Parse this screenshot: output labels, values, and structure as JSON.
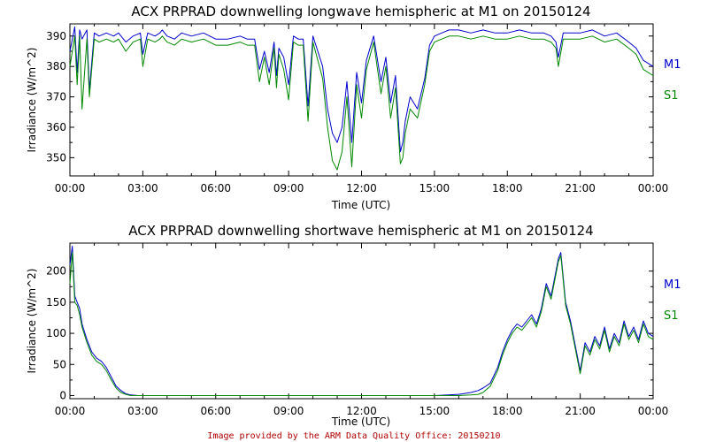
{
  "footer": "Image provided by the ARM Data Quality Office: 20150210",
  "colors": {
    "m1": "#0000cc",
    "s1": "#008800",
    "footer": "#b00000"
  },
  "chart_data": [
    {
      "type": "line",
      "title": "ACX PRPRAD downwelling longwave hemispheric at M1 on 20150124",
      "xlabel": "Time (UTC)",
      "ylabel": "Irradiance (W/m^2)",
      "xlim": [
        0,
        24
      ],
      "ylim": [
        344,
        394
      ],
      "yticks": [
        350,
        360,
        370,
        380,
        390
      ],
      "xticks": [
        0,
        3,
        6,
        9,
        12,
        15,
        18,
        21,
        24
      ],
      "xtick_labels": [
        "00:00",
        "03:00",
        "06:00",
        "09:00",
        "12:00",
        "15:00",
        "18:00",
        "21:00",
        "00:00"
      ],
      "legend": [
        "M1",
        "S1"
      ],
      "legend_position": "right",
      "series": [
        {
          "name": "M1",
          "x": [
            0,
            0.2,
            0.3,
            0.4,
            0.5,
            0.7,
            0.8,
            1.0,
            1.2,
            1.5,
            1.8,
            2.0,
            2.3,
            2.6,
            2.9,
            3.0,
            3.2,
            3.5,
            3.7,
            3.8,
            4.0,
            4.3,
            4.6,
            5.0,
            5.5,
            6.0,
            6.5,
            7.0,
            7.3,
            7.6,
            7.8,
            8.0,
            8.2,
            8.4,
            8.5,
            8.6,
            8.8,
            9.0,
            9.2,
            9.4,
            9.6,
            9.8,
            10.0,
            10.2,
            10.4,
            10.6,
            10.8,
            11.0,
            11.2,
            11.4,
            11.6,
            11.8,
            12.0,
            12.2,
            12.5,
            12.8,
            13.0,
            13.2,
            13.4,
            13.6,
            13.7,
            13.8,
            14.0,
            14.3,
            14.6,
            14.8,
            15.0,
            15.3,
            15.6,
            16.0,
            16.5,
            17.0,
            17.5,
            18.0,
            18.5,
            19.0,
            19.5,
            19.8,
            20.0,
            20.1,
            20.3,
            20.6,
            21.0,
            21.5,
            22.0,
            22.5,
            23.0,
            23.3,
            23.6,
            24.0
          ],
          "values": [
            385,
            393,
            378,
            392,
            389,
            392,
            372,
            391,
            390,
            391,
            390,
            391,
            388,
            390,
            391,
            384,
            391,
            390,
            391,
            392,
            390,
            389,
            391,
            390,
            391,
            389,
            389,
            390,
            389,
            389,
            379,
            385,
            378,
            388,
            377,
            386,
            383,
            374,
            390,
            389,
            389,
            367,
            390,
            385,
            380,
            366,
            358,
            355,
            360,
            375,
            355,
            378,
            368,
            382,
            390,
            375,
            383,
            368,
            377,
            352,
            355,
            362,
            370,
            366,
            376,
            387,
            390,
            391,
            392,
            392,
            391,
            392,
            391,
            391,
            392,
            391,
            391,
            390,
            388,
            383,
            391,
            391,
            391,
            392,
            390,
            391,
            388,
            386,
            382,
            380
          ]
        },
        {
          "name": "S1",
          "x": [
            0,
            0.2,
            0.3,
            0.4,
            0.5,
            0.7,
            0.8,
            1.0,
            1.2,
            1.5,
            1.8,
            2.0,
            2.3,
            2.6,
            2.9,
            3.0,
            3.2,
            3.5,
            3.7,
            3.8,
            4.0,
            4.3,
            4.6,
            5.0,
            5.5,
            6.0,
            6.5,
            7.0,
            7.3,
            7.6,
            7.8,
            8.0,
            8.2,
            8.4,
            8.5,
            8.6,
            8.8,
            9.0,
            9.2,
            9.4,
            9.6,
            9.8,
            10.0,
            10.2,
            10.4,
            10.6,
            10.8,
            11.0,
            11.2,
            11.4,
            11.6,
            11.8,
            12.0,
            12.2,
            12.5,
            12.8,
            13.0,
            13.2,
            13.4,
            13.6,
            13.7,
            13.8,
            14.0,
            14.3,
            14.6,
            14.8,
            15.0,
            15.3,
            15.6,
            16.0,
            16.5,
            17.0,
            17.5,
            18.0,
            18.5,
            19.0,
            19.5,
            19.8,
            20.0,
            20.1,
            20.3,
            20.6,
            21.0,
            21.5,
            22.0,
            22.5,
            23.0,
            23.3,
            23.6,
            24.0
          ],
          "values": [
            380,
            390,
            374,
            390,
            366,
            389,
            370,
            389,
            388,
            389,
            388,
            389,
            385,
            388,
            389,
            380,
            389,
            388,
            389,
            390,
            388,
            387,
            389,
            388,
            389,
            387,
            387,
            388,
            387,
            387,
            375,
            383,
            374,
            386,
            373,
            384,
            379,
            369,
            388,
            387,
            387,
            362,
            388,
            382,
            376,
            360,
            349,
            346,
            352,
            370,
            347,
            374,
            363,
            379,
            388,
            371,
            380,
            363,
            373,
            348,
            350,
            358,
            366,
            363,
            374,
            385,
            388,
            389,
            390,
            390,
            389,
            390,
            389,
            389,
            390,
            389,
            389,
            388,
            386,
            380,
            389,
            389,
            389,
            390,
            388,
            389,
            386,
            384,
            379,
            377
          ]
        }
      ]
    },
    {
      "type": "line",
      "title": "ACX PRPRAD downwelling shortwave hemispheric at M1 on 20150124",
      "xlabel": "Time (UTC)",
      "ylabel": "Irradiance (W/m^2)",
      "xlim": [
        0,
        24
      ],
      "ylim": [
        -5,
        245
      ],
      "yticks": [
        0,
        50,
        100,
        150,
        200
      ],
      "xticks": [
        0,
        3,
        6,
        9,
        12,
        15,
        18,
        21,
        24
      ],
      "xtick_labels": [
        "00:00",
        "03:00",
        "06:00",
        "09:00",
        "12:00",
        "15:00",
        "18:00",
        "21:00",
        "00:00"
      ],
      "legend": [
        "M1",
        "S1"
      ],
      "legend_position": "right",
      "series": [
        {
          "name": "M1",
          "x": [
            0,
            0.1,
            0.2,
            0.3,
            0.4,
            0.5,
            0.7,
            0.9,
            1.1,
            1.3,
            1.5,
            1.7,
            1.9,
            2.1,
            2.3,
            2.5,
            2.8,
            3.0,
            6.0,
            9.0,
            12.0,
            15.0,
            16.0,
            16.5,
            16.8,
            17.0,
            17.3,
            17.6,
            17.8,
            18.0,
            18.2,
            18.4,
            18.6,
            18.8,
            19.0,
            19.2,
            19.4,
            19.6,
            19.8,
            20.0,
            20.1,
            20.2,
            20.4,
            20.6,
            20.8,
            21.0,
            21.2,
            21.4,
            21.6,
            21.8,
            22.0,
            22.2,
            22.4,
            22.6,
            22.8,
            23.0,
            23.2,
            23.4,
            23.6,
            23.8,
            24.0
          ],
          "values": [
            210,
            240,
            160,
            150,
            140,
            115,
            90,
            70,
            60,
            55,
            45,
            30,
            15,
            8,
            3,
            1,
            0,
            0,
            0,
            0,
            0,
            0,
            2,
            5,
            8,
            12,
            20,
            45,
            70,
            90,
            105,
            115,
            110,
            120,
            130,
            115,
            140,
            180,
            160,
            200,
            220,
            230,
            150,
            120,
            80,
            40,
            85,
            70,
            95,
            80,
            110,
            75,
            100,
            85,
            120,
            95,
            110,
            90,
            120,
            100,
            95
          ]
        },
        {
          "name": "S1",
          "x": [
            0,
            0.1,
            0.2,
            0.3,
            0.4,
            0.5,
            0.7,
            0.9,
            1.1,
            1.3,
            1.5,
            1.7,
            1.9,
            2.1,
            2.3,
            2.5,
            2.8,
            3.0,
            6.0,
            9.0,
            12.0,
            15.0,
            16.0,
            16.5,
            16.8,
            17.0,
            17.3,
            17.6,
            17.8,
            18.0,
            18.2,
            18.4,
            18.6,
            18.8,
            19.0,
            19.2,
            19.4,
            19.6,
            19.8,
            20.0,
            20.1,
            20.2,
            20.4,
            20.6,
            20.8,
            21.0,
            21.2,
            21.4,
            21.6,
            21.8,
            22.0,
            22.2,
            22.4,
            22.6,
            22.8,
            23.0,
            23.2,
            23.4,
            23.6,
            23.8,
            24.0
          ],
          "values": [
            180,
            230,
            150,
            145,
            130,
            110,
            85,
            65,
            55,
            50,
            40,
            25,
            12,
            5,
            2,
            0,
            0,
            0,
            0,
            0,
            0,
            0,
            0,
            1,
            2,
            5,
            15,
            40,
            65,
            85,
            100,
            110,
            105,
            115,
            125,
            110,
            135,
            175,
            155,
            195,
            215,
            225,
            145,
            115,
            75,
            35,
            80,
            65,
            90,
            75,
            105,
            70,
            95,
            80,
            115,
            90,
            105,
            85,
            115,
            95,
            90
          ]
        }
      ]
    }
  ]
}
